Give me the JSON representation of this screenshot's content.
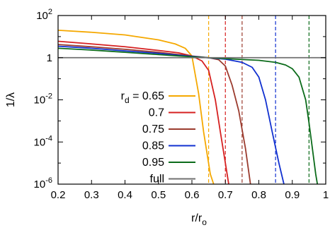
{
  "chart_data": {
    "type": "line",
    "xlabel": "r/r",
    "xlabel_sub": "o",
    "ylabel": "1/λ",
    "xlim": [
      0.2,
      1.0
    ],
    "ylim": [
      1e-06,
      100
    ],
    "yscale": "log",
    "x_ticks": [
      "0.2",
      "0.3",
      "0.4",
      "0.5",
      "0.6",
      "0.7",
      "0.8",
      "0.9",
      "1"
    ],
    "y_ticks": [
      {
        "value": 1e-06,
        "base": "10",
        "exp": "-6"
      },
      {
        "value": 0.0001,
        "base": "10",
        "exp": "-4"
      },
      {
        "value": 0.01,
        "base": "10",
        "exp": "-2"
      },
      {
        "value": 1,
        "base": "1",
        "exp": ""
      },
      {
        "value": 100,
        "base": "10",
        "exp": "2"
      }
    ],
    "legend_position": "lower-left",
    "legend_prefix": "r",
    "legend_prefix_sub": "d",
    "legend_prefix_suffix": " = ",
    "series": [
      {
        "name": "0.65",
        "color": "#f5a800",
        "cutoff": 0.65,
        "points": [
          [
            0.2,
            20
          ],
          [
            0.3,
            16
          ],
          [
            0.4,
            12
          ],
          [
            0.5,
            7
          ],
          [
            0.55,
            4.5
          ],
          [
            0.58,
            2.8
          ],
          [
            0.6,
            1.2
          ],
          [
            0.62,
            0.02
          ],
          [
            0.635,
            0.0003
          ],
          [
            0.645,
            3e-05
          ],
          [
            0.655,
            3e-06
          ],
          [
            0.665,
            1e-06
          ]
        ]
      },
      {
        "name": "0.7",
        "color": "#d62020",
        "cutoff": 0.7,
        "points": [
          [
            0.2,
            6
          ],
          [
            0.3,
            4.5
          ],
          [
            0.4,
            3.3
          ],
          [
            0.5,
            2.2
          ],
          [
            0.56,
            1.7
          ],
          [
            0.6,
            1.2
          ],
          [
            0.63,
            0.7
          ],
          [
            0.65,
            0.25
          ],
          [
            0.67,
            0.01
          ],
          [
            0.685,
            0.0003
          ],
          [
            0.7,
            1e-05
          ],
          [
            0.71,
            1e-06
          ]
        ]
      },
      {
        "name": "0.75",
        "color": "#9b3b2e",
        "cutoff": 0.75,
        "points": [
          [
            0.2,
            4.2
          ],
          [
            0.3,
            3.3
          ],
          [
            0.4,
            2.5
          ],
          [
            0.5,
            1.8
          ],
          [
            0.6,
            1.2
          ],
          [
            0.65,
            1.0
          ],
          [
            0.68,
            0.8
          ],
          [
            0.7,
            0.4
          ],
          [
            0.72,
            0.05
          ],
          [
            0.74,
            0.003
          ],
          [
            0.76,
            5e-05
          ],
          [
            0.775,
            1e-06
          ]
        ]
      },
      {
        "name": "0.85",
        "color": "#1030d0",
        "cutoff": 0.85,
        "points": [
          [
            0.2,
            3.5
          ],
          [
            0.3,
            2.8
          ],
          [
            0.4,
            2.1
          ],
          [
            0.5,
            1.6
          ],
          [
            0.6,
            1.15
          ],
          [
            0.7,
            0.85
          ],
          [
            0.75,
            0.6
          ],
          [
            0.78,
            0.35
          ],
          [
            0.8,
            0.12
          ],
          [
            0.82,
            0.01
          ],
          [
            0.84,
            0.0003
          ],
          [
            0.86,
            1e-05
          ],
          [
            0.875,
            1e-06
          ]
        ]
      },
      {
        "name": "0.95",
        "color": "#0b6b1a",
        "cutoff": 0.95,
        "points": [
          [
            0.2,
            2.8
          ],
          [
            0.3,
            2.3
          ],
          [
            0.4,
            1.8
          ],
          [
            0.5,
            1.4
          ],
          [
            0.6,
            1.1
          ],
          [
            0.7,
            0.9
          ],
          [
            0.8,
            0.75
          ],
          [
            0.85,
            0.6
          ],
          [
            0.88,
            0.45
          ],
          [
            0.9,
            0.3
          ],
          [
            0.92,
            0.12
          ],
          [
            0.94,
            0.01
          ],
          [
            0.95,
            0.0008
          ],
          [
            0.96,
            5e-05
          ],
          [
            0.97,
            3e-06
          ],
          [
            0.975,
            1e-06
          ]
        ]
      },
      {
        "name": "full",
        "color": "#707070",
        "cutoff": null,
        "points": [
          [
            0.2,
            1
          ],
          [
            1.0,
            1
          ]
        ]
      }
    ]
  }
}
